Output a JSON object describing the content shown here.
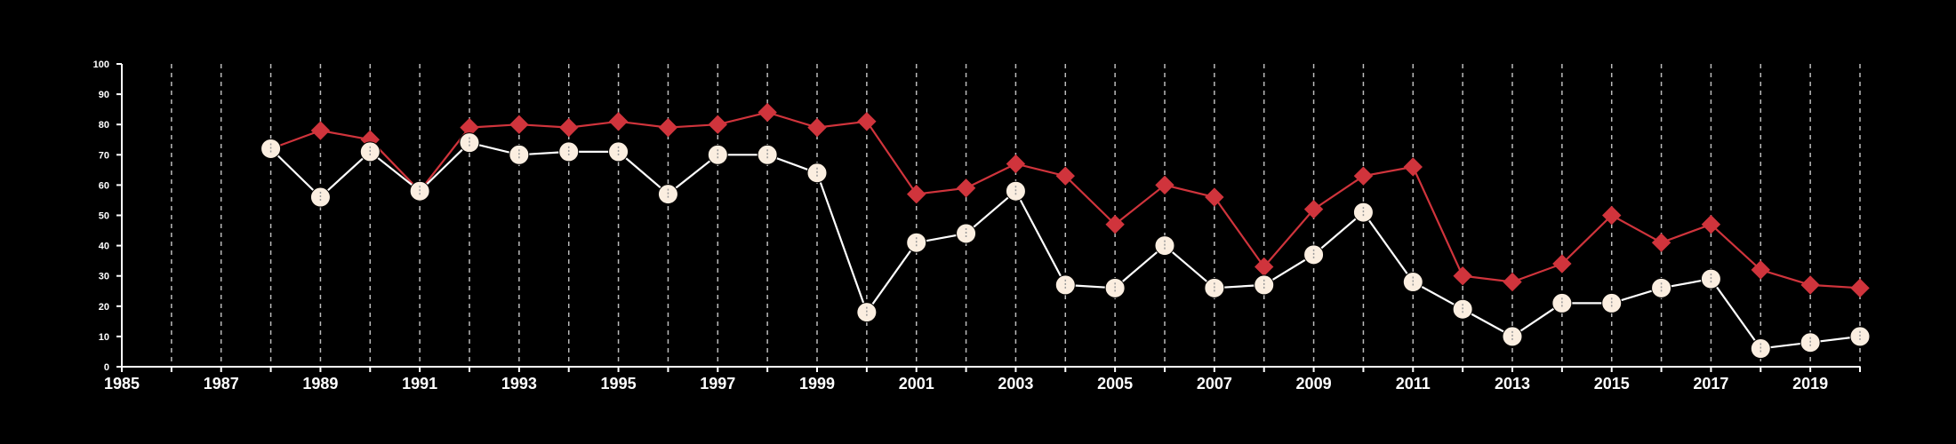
{
  "colors": {
    "background": "#000000",
    "axis": "#ffffff",
    "grid": "#bbbbbb",
    "series_a": "#d0343c",
    "series_b": "#fbeee0",
    "series_b_line": "#ffffff",
    "series_b_glyph": "#999999"
  },
  "chart_data": {
    "type": "line",
    "title": "",
    "xlabel": "",
    "ylabel": "",
    "xlim": [
      1985,
      2020
    ],
    "ylim": [
      0,
      100
    ],
    "x_ticks": [
      1985,
      1987,
      1989,
      1991,
      1993,
      1995,
      1997,
      1999,
      2001,
      2003,
      2005,
      2007,
      2009,
      2011,
      2013,
      2015,
      2017,
      2019
    ],
    "y_ticks": [
      0,
      10,
      20,
      30,
      40,
      50,
      60,
      70,
      80,
      90,
      100
    ],
    "grid": "vertical dashed lines at each year",
    "legend": "none",
    "series": [
      {
        "marker": "diamond",
        "color": "#d0343c",
        "x": [
          1988,
          1989,
          1990,
          1991,
          1992,
          1993,
          1994,
          1995,
          1996,
          1997,
          1998,
          1999,
          2000,
          2001,
          2002,
          2003,
          2004,
          2005,
          2006,
          2007,
          2008,
          2009,
          2010,
          2011,
          2012,
          2013,
          2014,
          2015,
          2016,
          2017,
          2018,
          2019,
          2020
        ],
        "values": [
          72,
          78,
          75,
          58,
          79,
          80,
          79,
          81,
          79,
          80,
          84,
          79,
          81,
          57,
          59,
          67,
          63,
          47,
          60,
          56,
          33,
          52,
          63,
          66,
          30,
          28,
          34,
          50,
          41,
          47,
          32,
          27,
          26
        ]
      },
      {
        "marker": "circle",
        "color": "#fbeee0",
        "x": [
          1988,
          1989,
          1990,
          1991,
          1992,
          1993,
          1994,
          1995,
          1996,
          1997,
          1998,
          1999,
          2000,
          2001,
          2002,
          2003,
          2004,
          2005,
          2006,
          2007,
          2008,
          2009,
          2010,
          2011,
          2012,
          2013,
          2014,
          2015,
          2016,
          2017,
          2018,
          2019,
          2020
        ],
        "values": [
          72,
          56,
          71,
          58,
          74,
          70,
          71,
          71,
          57,
          70,
          70,
          64,
          18,
          41,
          44,
          58,
          27,
          26,
          40,
          26,
          27,
          37,
          51,
          28,
          19,
          10,
          21,
          21,
          26,
          29,
          6,
          8,
          10
        ]
      }
    ]
  }
}
